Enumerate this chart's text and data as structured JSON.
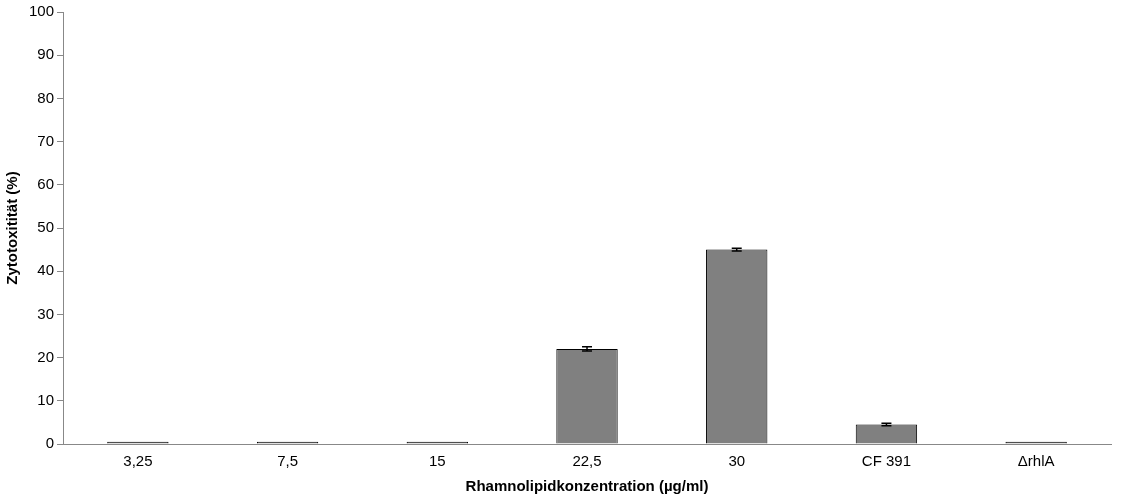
{
  "chart_data": {
    "type": "bar",
    "xlabel": "Rhamnolipidkonzentration (µg/ml)",
    "ylabel": "Zytotoxitität (%)",
    "categories": [
      "3,25",
      "7,5",
      "15",
      "22,5",
      "30",
      "CF 391",
      "ΔrhlA"
    ],
    "values": [
      0.5,
      0.5,
      0.5,
      22,
      45,
      4.5,
      0.5
    ],
    "errors": [
      null,
      null,
      null,
      0.5,
      0.3,
      0.3,
      null
    ],
    "color": "#808080",
    "ylim": [
      0,
      100
    ],
    "yticks": [
      0,
      10,
      20,
      30,
      40,
      50,
      60,
      70,
      80,
      90,
      100
    ],
    "grid": false,
    "legend": false
  }
}
